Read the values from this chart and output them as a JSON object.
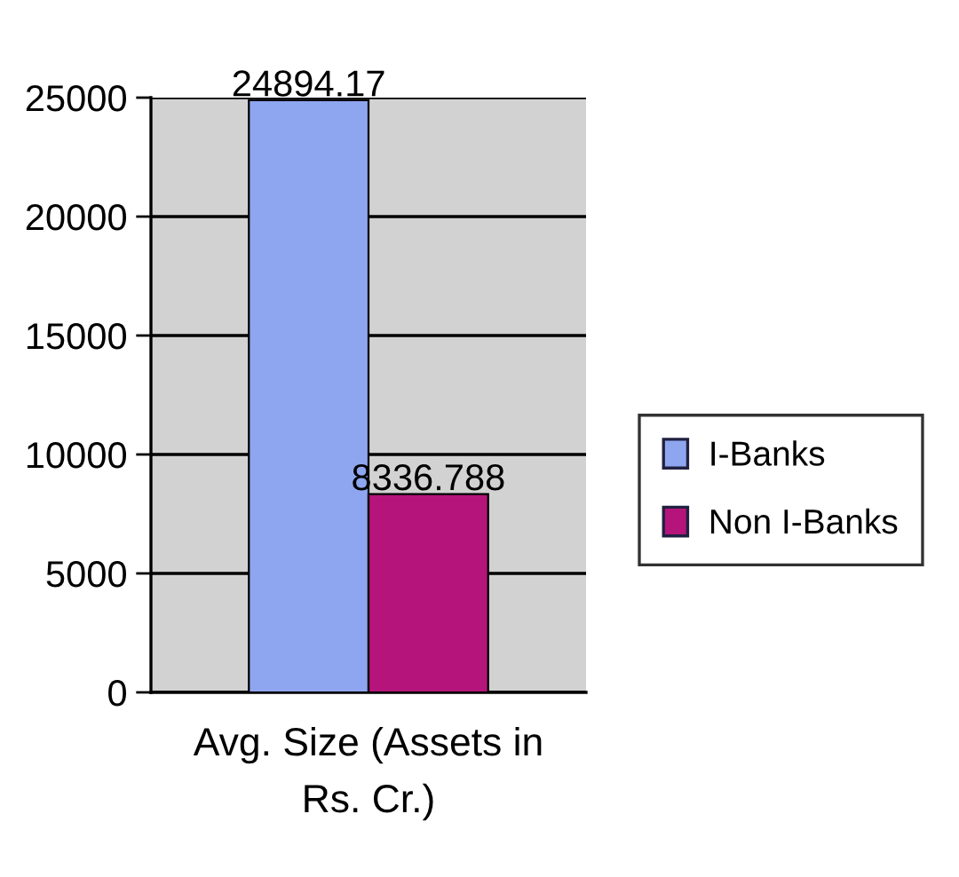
{
  "chart_data": {
    "type": "bar",
    "categories": [
      "Avg. Size (Assets in Rs. Cr.)"
    ],
    "series": [
      {
        "name": "I-Banks",
        "color": "#8ea5ef",
        "values": [
          24894.17
        ]
      },
      {
        "name": "Non I-Banks",
        "color": "#b5147a",
        "values": [
          8336.788
        ]
      }
    ],
    "ylim": [
      0,
      25000
    ],
    "yticks": [
      0,
      5000,
      10000,
      15000,
      20000,
      25000
    ],
    "grid": "y",
    "legend": "right",
    "data_labels": true
  }
}
